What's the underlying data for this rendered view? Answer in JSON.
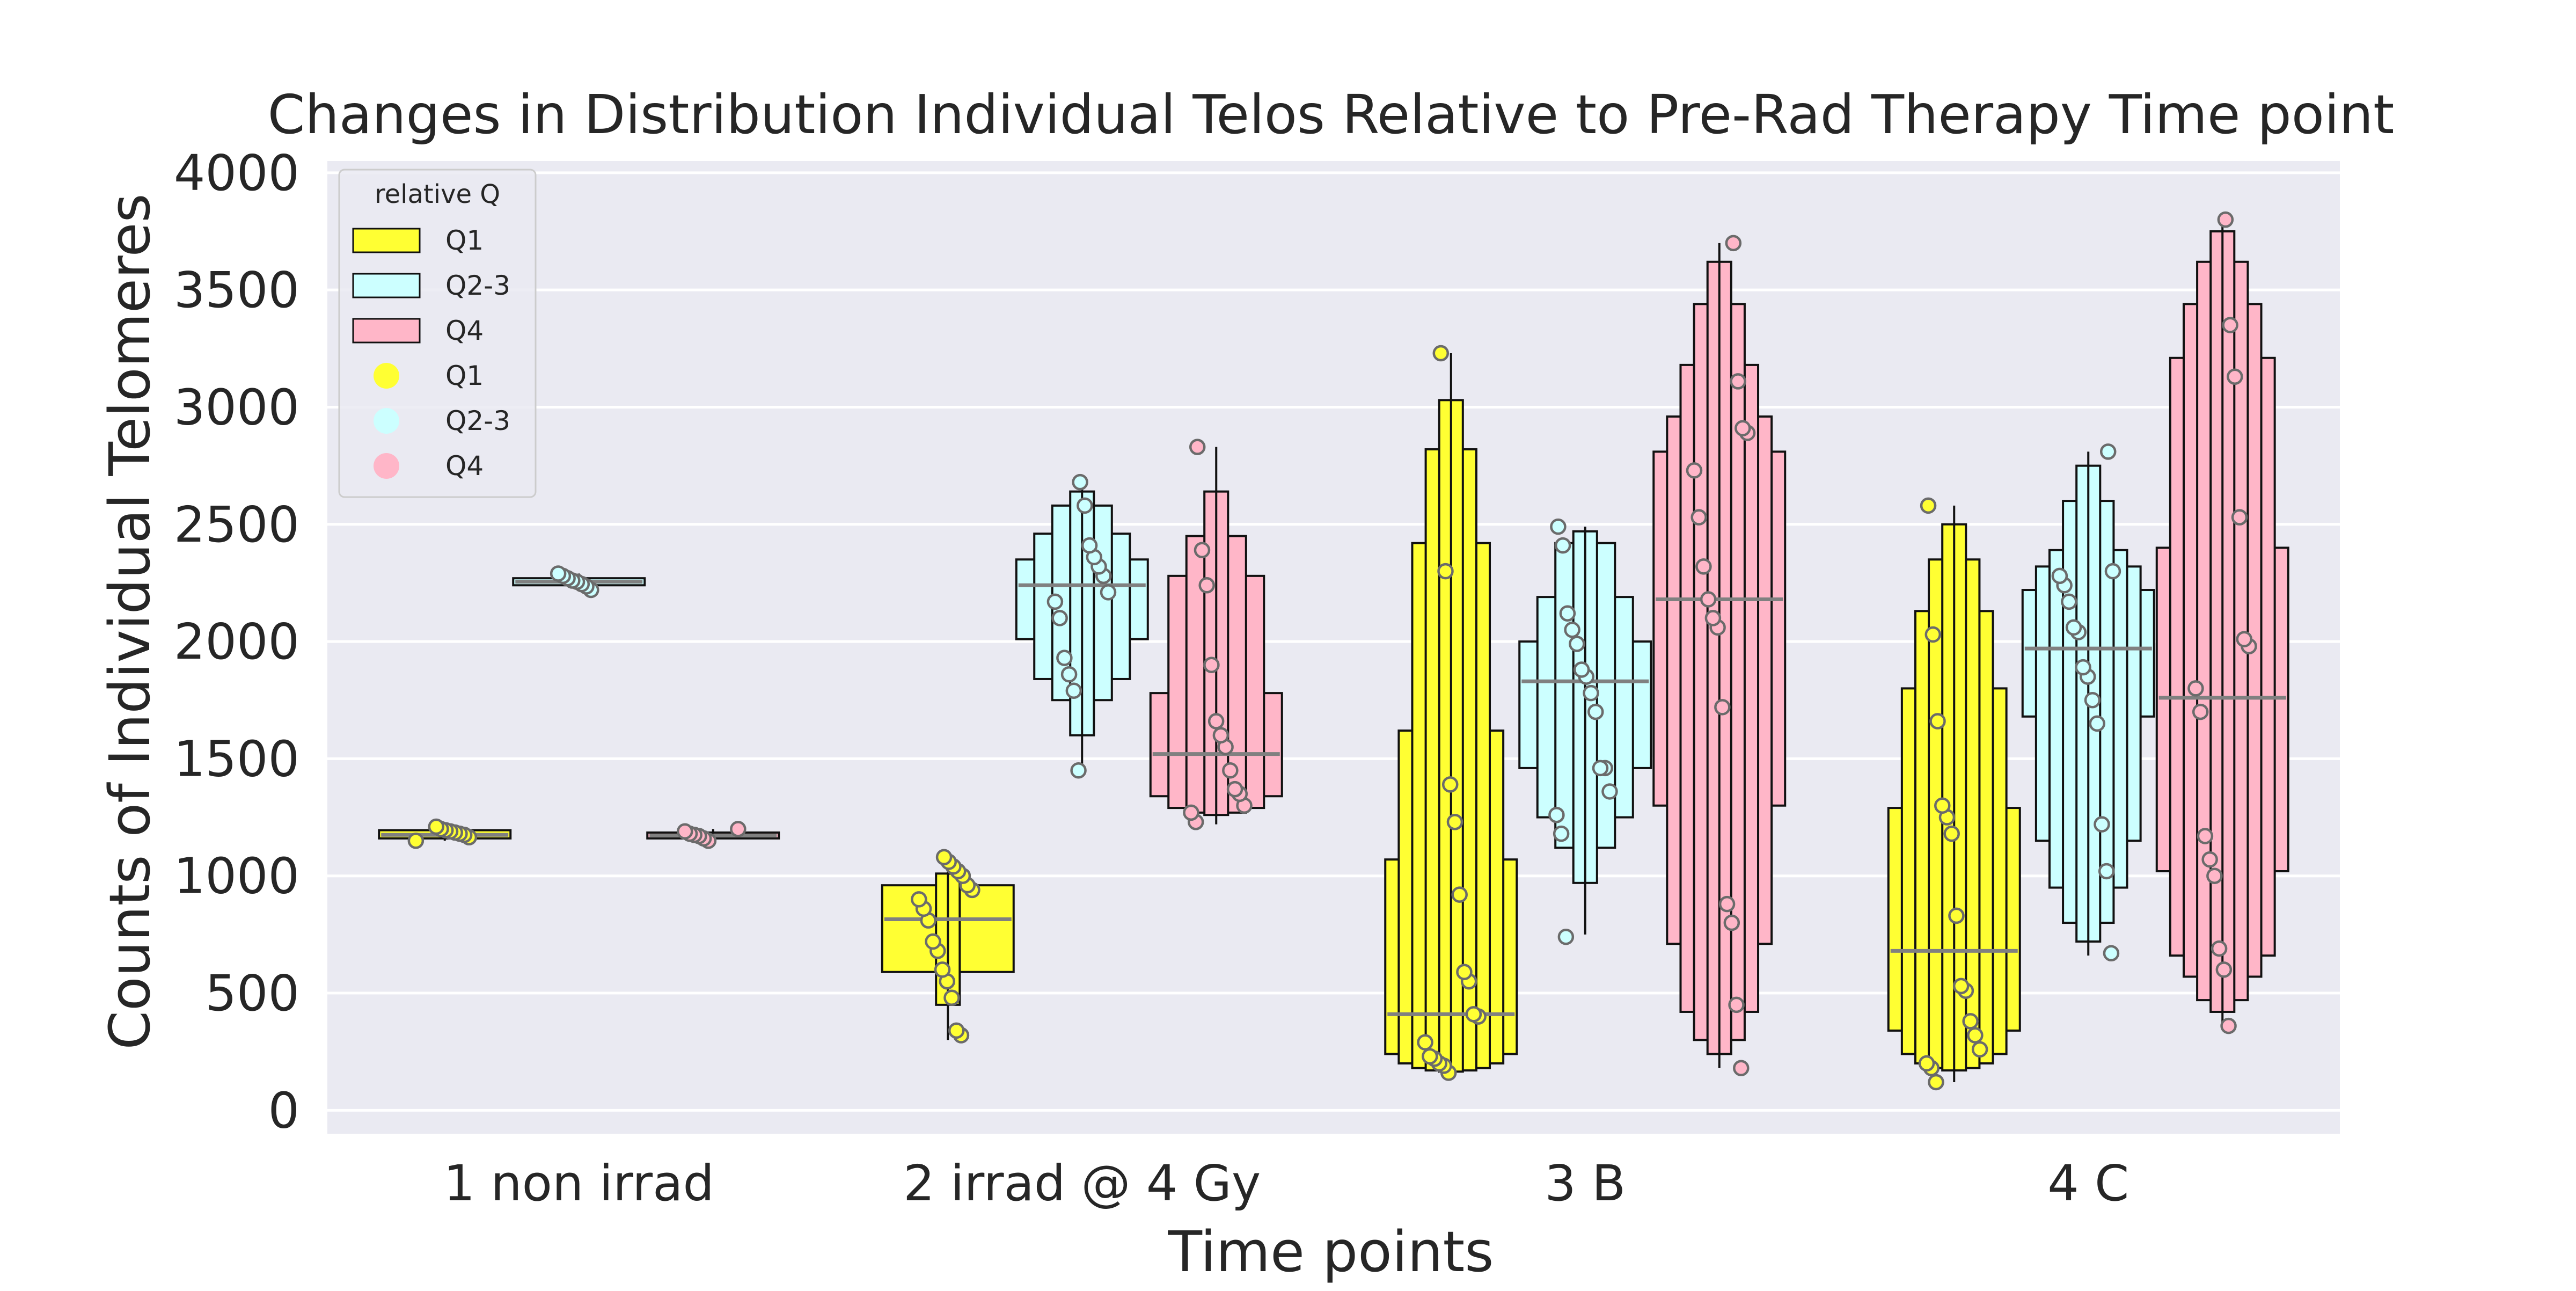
{
  "chart_data": {
    "type": "boxen",
    "title": "Changes in Distribution Individual Telos Relative to Pre-Rad Therapy Time point",
    "xlabel": "Time points",
    "ylabel": "Counts of Individual Telomeres",
    "ylim": [
      -100,
      4050
    ],
    "yticks": [
      0,
      500,
      1000,
      1500,
      2000,
      2500,
      3000,
      3500,
      4000
    ],
    "grid": true,
    "legend_placement": "top-left",
    "categories": [
      "1 non irrad",
      "2 irrad @ 4 Gy",
      "3 B",
      "4 C"
    ],
    "legend": {
      "title": "relative Q",
      "box_entries": [
        "Q1",
        "Q2-3",
        "Q4"
      ],
      "point_entries": [
        "Q1",
        "Q2-3",
        "Q4"
      ]
    },
    "series": [
      {
        "name": "Q1",
        "color": "#ffff33",
        "groups": [
          {
            "median": 1175,
            "boxes": [
              [
                1160,
                1195
              ]
            ],
            "whiskers": [
              1150,
              1210
            ],
            "points": [
              1150,
              1165,
              1175,
              1180,
              1185,
              1190,
              1195,
              1200,
              1210
            ]
          },
          {
            "median": 815,
            "boxes": [
              [
                590,
                960
              ],
              [
                450,
                1010
              ]
            ],
            "whiskers": [
              300,
              1070
            ],
            "points": [
              320,
              340,
              480,
              550,
              600,
              680,
              720,
              810,
              860,
              900,
              940,
              960,
              1000,
              1020,
              1040,
              1060,
              1080
            ]
          },
          {
            "median": 410,
            "boxes": [
              [
                240,
                1070
              ],
              [
                200,
                1620
              ],
              [
                180,
                2420
              ],
              [
                170,
                2820
              ],
              [
                165,
                3030
              ]
            ],
            "whiskers": [
              150,
              3230
            ],
            "points": [
              160,
              190,
              200,
              220,
              230,
              290,
              400,
              410,
              550,
              590,
              920,
              1230,
              1390,
              2300,
              3230
            ]
          },
          {
            "median": 680,
            "boxes": [
              [
                340,
                1290
              ],
              [
                240,
                1800
              ],
              [
                200,
                2130
              ],
              [
                180,
                2350
              ],
              [
                170,
                2500
              ]
            ],
            "whiskers": [
              120,
              2580
            ],
            "points": [
              120,
              180,
              200,
              260,
              320,
              380,
              510,
              530,
              830,
              1180,
              1250,
              1300,
              1660,
              2030,
              2580
            ]
          }
        ]
      },
      {
        "name": "Q2-3",
        "color": "#ccffff",
        "groups": [
          {
            "median": 2255,
            "boxes": [
              [
                2240,
                2270
              ]
            ],
            "whiskers": [
              2225,
              2290
            ],
            "points": [
              2220,
              2235,
              2245,
              2255,
              2260,
              2270,
              2280,
              2290
            ]
          },
          {
            "median": 2240,
            "boxes": [
              [
                2010,
                2350
              ],
              [
                1840,
                2460
              ],
              [
                1750,
                2580
              ],
              [
                1600,
                2640
              ]
            ],
            "whiskers": [
              1450,
              2680
            ],
            "points": [
              1450,
              1790,
              1860,
              1930,
              2100,
              2170,
              2210,
              2280,
              2320,
              2360,
              2410,
              2580,
              2680
            ]
          },
          {
            "median": 1830,
            "boxes": [
              [
                1460,
                2000
              ],
              [
                1250,
                2190
              ],
              [
                1120,
                2420
              ],
              [
                970,
                2470
              ]
            ],
            "whiskers": [
              750,
              2490
            ],
            "points": [
              740,
              1180,
              1260,
              1360,
              1460,
              1460,
              1700,
              1780,
              1850,
              1880,
              1990,
              2050,
              2120,
              2410,
              2490
            ]
          },
          {
            "median": 1970,
            "boxes": [
              [
                1680,
                2220
              ],
              [
                1150,
                2320
              ],
              [
                950,
                2390
              ],
              [
                800,
                2600
              ],
              [
                720,
                2750
              ]
            ],
            "whiskers": [
              660,
              2810
            ],
            "points": [
              670,
              1020,
              1220,
              1650,
              1750,
              1850,
              1890,
              2040,
              2060,
              2170,
              2240,
              2280,
              2300,
              2810
            ]
          }
        ]
      },
      {
        "name": "Q4",
        "color": "#ffb6c8",
        "groups": [
          {
            "median": 1172,
            "boxes": [
              [
                1160,
                1185
              ]
            ],
            "whiskers": [
              1150,
              1200
            ],
            "points": [
              1150,
              1160,
              1170,
              1175,
              1180,
              1190,
              1200
            ]
          },
          {
            "median": 1520,
            "boxes": [
              [
                1340,
                1780
              ],
              [
                1290,
                2280
              ],
              [
                1270,
                2450
              ],
              [
                1260,
                2640
              ]
            ],
            "whiskers": [
              1220,
              2830
            ],
            "points": [
              1230,
              1270,
              1300,
              1350,
              1370,
              1450,
              1550,
              1600,
              1660,
              1900,
              2240,
              2390,
              2830
            ]
          },
          {
            "median": 2180,
            "boxes": [
              [
                1300,
                2810
              ],
              [
                710,
                2960
              ],
              [
                420,
                3180
              ],
              [
                300,
                3440
              ],
              [
                240,
                3620
              ]
            ],
            "whiskers": [
              180,
              3700
            ],
            "points": [
              180,
              450,
              800,
              880,
              1720,
              2060,
              2100,
              2180,
              2320,
              2530,
              2730,
              2890,
              2910,
              3110,
              3700
            ]
          },
          {
            "median": 1760,
            "boxes": [
              [
                1020,
                2400
              ],
              [
                660,
                3210
              ],
              [
                570,
                3440
              ],
              [
                470,
                3620
              ],
              [
                420,
                3750
              ]
            ],
            "whiskers": [
              360,
              3800
            ],
            "points": [
              360,
              600,
              690,
              1000,
              1070,
              1170,
              1700,
              1800,
              1980,
              2010,
              2530,
              3130,
              3350,
              3800
            ]
          }
        ]
      }
    ]
  }
}
